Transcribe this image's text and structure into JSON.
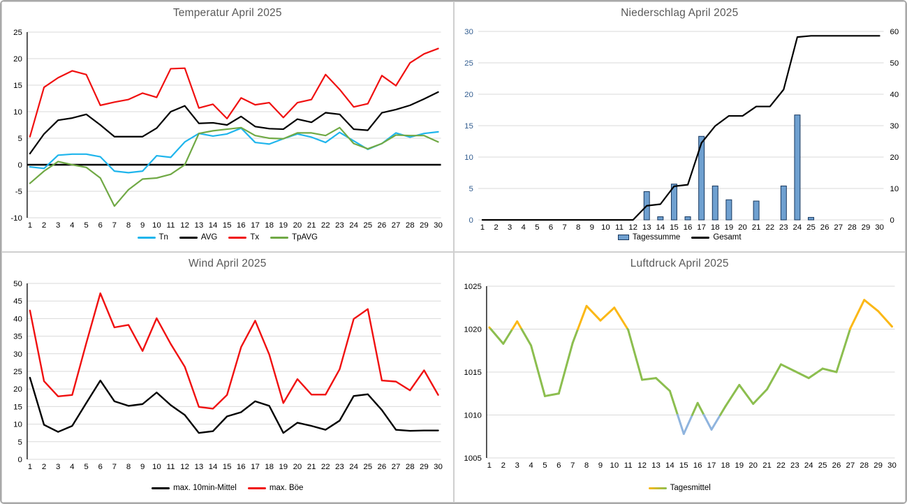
{
  "chart_data": [
    {
      "id": "temperatur",
      "type": "line",
      "title": "Temperatur April 2025",
      "categories": [
        1,
        2,
        3,
        4,
        5,
        6,
        7,
        8,
        9,
        10,
        11,
        12,
        13,
        14,
        15,
        16,
        17,
        18,
        19,
        20,
        21,
        22,
        23,
        24,
        25,
        26,
        27,
        28,
        29,
        30
      ],
      "y_axis": {
        "min": -10,
        "max": 25,
        "step": 5,
        "label_color": "#000000"
      },
      "zero_line_at": 0,
      "axis_line": true,
      "grid": true,
      "legend_position": "bottom",
      "series": [
        {
          "name": "Tn",
          "color": "#1fb5ec",
          "values": [
            -0.4,
            -0.7,
            1.8,
            2.0,
            2.0,
            1.5,
            -1.2,
            -1.5,
            -1.2,
            1.7,
            1.4,
            4.3,
            5.9,
            5.4,
            5.8,
            6.9,
            4.2,
            3.9,
            4.9,
            5.8,
            5.2,
            4.2,
            6.1,
            4.5,
            2.9,
            4.0,
            6.0,
            5.2,
            5.9,
            6.2
          ]
        },
        {
          "name": "AVG",
          "color": "#000000",
          "values": [
            2.1,
            5.8,
            8.4,
            8.8,
            9.5,
            7.5,
            5.3,
            5.3,
            5.3,
            6.9,
            10.0,
            11.1,
            7.8,
            7.9,
            7.5,
            9.1,
            7.2,
            6.8,
            6.7,
            8.6,
            8.0,
            9.8,
            9.5,
            6.7,
            6.5,
            9.8,
            10.4,
            11.2,
            12.4,
            13.7
          ]
        },
        {
          "name": "Tx",
          "color": "#f01010",
          "values": [
            5.3,
            14.6,
            16.4,
            17.7,
            17.0,
            11.2,
            11.8,
            12.3,
            13.5,
            12.7,
            18.1,
            18.2,
            10.7,
            11.4,
            8.7,
            12.6,
            11.3,
            11.7,
            8.9,
            11.7,
            12.3,
            17.0,
            14.2,
            10.9,
            11.5,
            16.8,
            14.9,
            19.2,
            20.9,
            21.9
          ]
        },
        {
          "name": "TpAVG",
          "color": "#70a945",
          "values": [
            -3.5,
            -1.2,
            0.6,
            0.0,
            -0.5,
            -2.5,
            -7.8,
            -4.7,
            -2.7,
            -2.5,
            -1.8,
            0.0,
            5.9,
            6.4,
            6.7,
            7.0,
            5.5,
            5.0,
            4.9,
            6.0,
            6.0,
            5.5,
            7.0,
            4.0,
            3.0,
            4.0,
            5.6,
            5.5,
            5.5,
            4.3
          ]
        }
      ]
    },
    {
      "id": "niederschlag",
      "type": "bar+line",
      "title": "Niederschlag April 2025",
      "categories": [
        1,
        2,
        3,
        4,
        5,
        6,
        7,
        8,
        9,
        10,
        11,
        12,
        13,
        14,
        15,
        16,
        17,
        18,
        19,
        20,
        21,
        22,
        23,
        24,
        25,
        26,
        27,
        28,
        29,
        30
      ],
      "y_axis_left": {
        "min": 0,
        "max": 30,
        "step": 5,
        "label_color": "#366092"
      },
      "y_axis_right": {
        "min": 0,
        "max": 60,
        "step": 10,
        "label_color": "#000000"
      },
      "axis_line": false,
      "grid": true,
      "legend_position": "bottom",
      "series": [
        {
          "name": "Tagessumme",
          "type": "bar",
          "axis": "left",
          "fill": "#6fa0d0",
          "stroke": "#17375e",
          "values": [
            0,
            0,
            0,
            0,
            0,
            0,
            0,
            0,
            0,
            0,
            0,
            0,
            4.5,
            0.5,
            5.7,
            0.5,
            13.3,
            5.4,
            3.2,
            0,
            3.0,
            0,
            5.4,
            16.7,
            0.4,
            0,
            0,
            0,
            0,
            0
          ]
        },
        {
          "name": "Gesamt",
          "type": "line",
          "axis": "right",
          "color": "#000000",
          "values": [
            0,
            0,
            0,
            0,
            0,
            0,
            0,
            0,
            0,
            0,
            0,
            0,
            4.5,
            5.0,
            10.7,
            11.2,
            24.5,
            29.9,
            33.1,
            33.1,
            36.1,
            36.1,
            41.5,
            58.2,
            58.6,
            58.6,
            58.6,
            58.6,
            58.6,
            58.6
          ]
        }
      ]
    },
    {
      "id": "wind",
      "type": "line",
      "title": "Wind April 2025",
      "categories": [
        1,
        2,
        3,
        4,
        5,
        6,
        7,
        8,
        9,
        10,
        11,
        12,
        13,
        14,
        15,
        16,
        17,
        18,
        19,
        20,
        21,
        22,
        23,
        24,
        25,
        26,
        27,
        28,
        29,
        30
      ],
      "y_axis": {
        "min": 0,
        "max": 50,
        "step": 5,
        "label_color": "#000000"
      },
      "axis_line": true,
      "grid": true,
      "legend_position": "bottom",
      "series": [
        {
          "name": "max. 10min-Mittel",
          "color": "#000000",
          "values": [
            23.2,
            9.8,
            7.8,
            9.5,
            16.0,
            22.4,
            16.5,
            15.2,
            15.7,
            19.0,
            15.4,
            12.6,
            7.5,
            8.0,
            12.2,
            13.4,
            16.5,
            15.2,
            7.5,
            10.4,
            9.5,
            8.4,
            11.0,
            18.0,
            18.5,
            14.0,
            8.4,
            8.1,
            8.2,
            8.2
          ]
        },
        {
          "name": "max. Böe",
          "color": "#f01010",
          "values": [
            42.3,
            22.2,
            17.9,
            18.3,
            33.0,
            47.2,
            37.5,
            38.2,
            30.8,
            40.1,
            32.8,
            26.3,
            14.9,
            14.4,
            18.3,
            31.9,
            39.4,
            29.8,
            16.0,
            22.8,
            18.4,
            18.4,
            25.6,
            39.9,
            42.7,
            22.4,
            22.1,
            19.6,
            25.3,
            18.3
          ]
        }
      ]
    },
    {
      "id": "luftdruck",
      "type": "line",
      "title": "Luftdruck April 2025",
      "categories": [
        1,
        2,
        3,
        4,
        5,
        6,
        7,
        8,
        9,
        10,
        11,
        12,
        13,
        14,
        15,
        16,
        17,
        18,
        19,
        20,
        21,
        22,
        23,
        24,
        25,
        26,
        27,
        28,
        29,
        30
      ],
      "y_axis": {
        "min": 1005,
        "max": 1025,
        "step": 5,
        "label_color": "#000000"
      },
      "axis_line": true,
      "grid": true,
      "legend_position": "bottom",
      "series": [
        {
          "name": "Tagesmittel",
          "type": "threshold-line",
          "thresholds": {
            "upper": 1020,
            "lower": 1010
          },
          "colors": {
            "above": "#fbb817",
            "normal": "#8cbe4f",
            "below": "#8fb4de"
          },
          "values": [
            1020.2,
            1018.3,
            1020.9,
            1018.1,
            1012.2,
            1012.5,
            1018.4,
            1022.7,
            1021.0,
            1022.5,
            1019.9,
            1014.1,
            1014.3,
            1012.8,
            1007.8,
            1011.4,
            1008.3,
            1011.0,
            1013.5,
            1011.3,
            1013.0,
            1015.9,
            1015.1,
            1014.3,
            1015.4,
            1015.0,
            1020.1,
            1023.4,
            1022.1,
            1020.3
          ]
        }
      ]
    }
  ],
  "style": {
    "gridline_color": "#d9d9d9",
    "title_color": "#595959",
    "tick_color": "#000000"
  }
}
